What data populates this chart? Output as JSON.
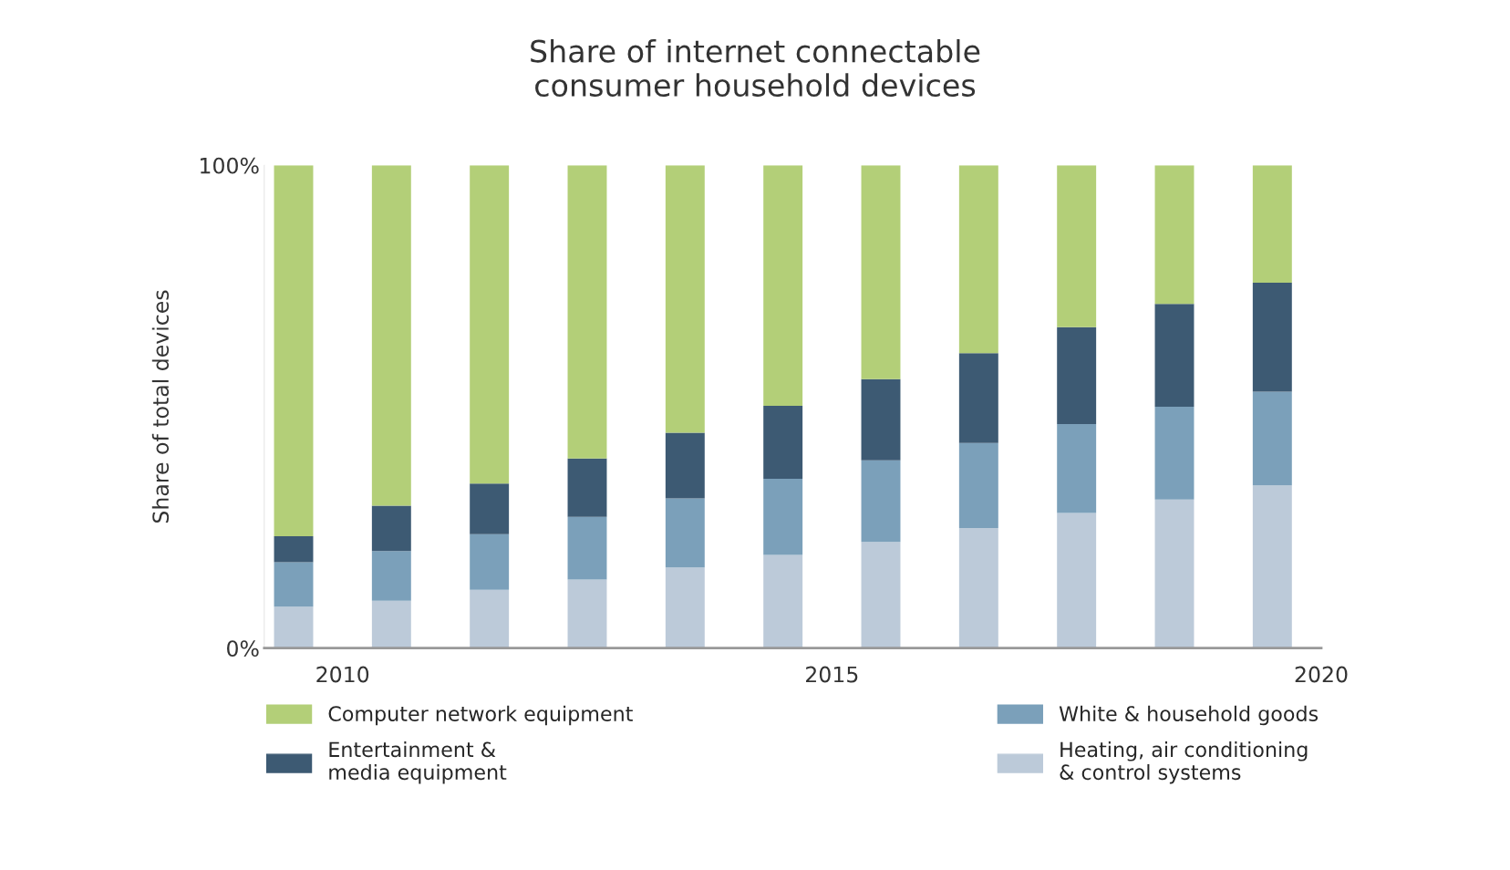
{
  "chart_data": {
    "type": "bar",
    "stacked": true,
    "title": "Share of internet connectable\nconsumer household devices",
    "ylabel": "Share of total devices",
    "x": [
      2009.5,
      2010.5,
      2011.5,
      2012.5,
      2013.5,
      2014.5,
      2015.5,
      2016.5,
      2017.5,
      2018.5,
      2019.5
    ],
    "xlim": [
      2009.2,
      2020
    ],
    "xticks": [
      2010,
      2015,
      2020
    ],
    "ylim": [
      0,
      100
    ],
    "yticks": [
      {
        "value": 0,
        "label": "0%"
      },
      {
        "value": 100,
        "label": "100%"
      }
    ],
    "grid": false,
    "legend": "bottom",
    "series": [
      {
        "name": "Heating, air conditioning\n& control systems",
        "color": "#bccad9",
        "values": [
          8.6,
          9.8,
          12.1,
          14.2,
          16.7,
          19.3,
          22.0,
          24.9,
          28.0,
          30.8,
          33.7
        ]
      },
      {
        "name": "White & household goods",
        "color": "#7ba0ba",
        "values": [
          9.2,
          10.3,
          11.5,
          13.0,
          14.3,
          15.8,
          16.9,
          17.6,
          18.4,
          19.2,
          19.4
        ]
      },
      {
        "name": "Entertainment &\nmedia equipment",
        "color": "#3d5a73",
        "values": [
          5.4,
          9.4,
          10.5,
          12.1,
          13.6,
          15.1,
          16.8,
          18.6,
          20.1,
          21.3,
          22.6
        ]
      },
      {
        "name": "Computer network equipment",
        "color": "#b3cf78",
        "values": [
          76.8,
          70.5,
          65.9,
          60.7,
          55.4,
          49.8,
          44.3,
          38.9,
          33.5,
          28.7,
          24.3
        ]
      }
    ]
  }
}
